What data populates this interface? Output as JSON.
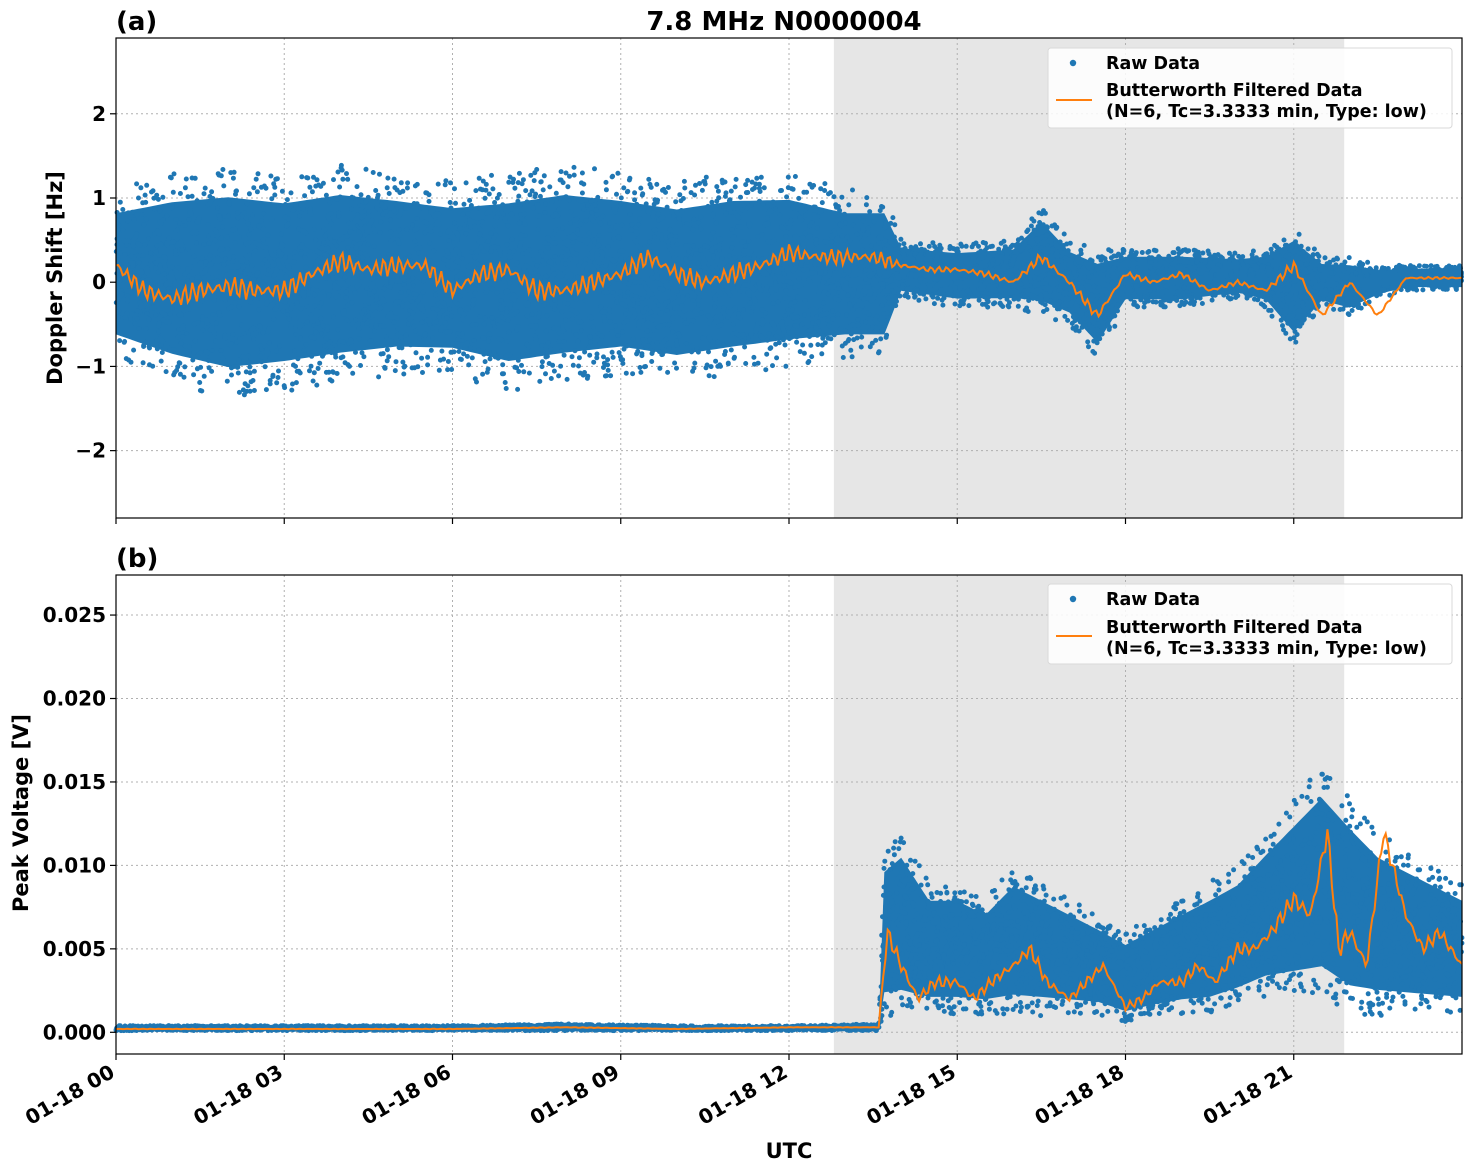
{
  "figure": {
    "title": "7.8 MHz N0000004",
    "xlabel": "UTC",
    "x_tick_labels": [
      "01-18 00",
      "01-18 03",
      "01-18 06",
      "01-18 09",
      "01-18 12",
      "01-18 15",
      "01-18 18",
      "01-18 21"
    ],
    "legend": {
      "raw_label": "Raw Data",
      "filtered_label_line1": "Butterworth Filtered Data",
      "filtered_label_line2": "(N=6, Tc=3.3333 min, Type: low)"
    },
    "colors": {
      "raw": "#1f77b4",
      "filtered": "#ff7f0e",
      "shade": "#e6e6e6"
    }
  },
  "chart_data": [
    {
      "type": "scatter",
      "panel_label": "(a)",
      "ylabel": "Doppler Shift [Hz]",
      "xlim_hours": [
        0,
        24
      ],
      "ylim": [
        -2.8,
        2.9
      ],
      "y_ticks": [
        2,
        1,
        0,
        -1,
        -2
      ],
      "y_tick_labels": [
        "2",
        "1",
        "0",
        "−1",
        "−2"
      ],
      "shaded_interval_hours": [
        12.8,
        21.9
      ],
      "grid": true,
      "legend_position": "top-right",
      "raw_envelope": {
        "x": [
          0,
          1,
          2,
          3,
          4,
          5,
          6,
          7,
          8,
          9,
          10,
          11,
          12,
          13,
          13.7,
          14,
          15,
          16,
          16.5,
          17,
          17.5,
          18,
          19,
          20,
          20.5,
          21,
          21.5,
          22,
          22.5,
          23,
          24
        ],
        "upper": [
          1.1,
          1.3,
          1.4,
          1.3,
          1.4,
          1.3,
          1.2,
          1.3,
          1.4,
          1.3,
          1.2,
          1.3,
          1.3,
          1.1,
          1.1,
          0.5,
          0.45,
          0.5,
          0.9,
          0.5,
          0.4,
          0.4,
          0.4,
          0.35,
          0.4,
          0.7,
          0.3,
          0.3,
          0.2,
          0.2,
          0.2
        ],
        "lower": [
          -0.9,
          -1.2,
          -1.4,
          -1.3,
          -1.2,
          -1.1,
          -1.1,
          -1.3,
          -1.2,
          -1.1,
          -1.2,
          -1.1,
          -1.0,
          -0.9,
          -0.9,
          -0.2,
          -0.3,
          -0.3,
          -0.4,
          -0.5,
          -0.9,
          -0.3,
          -0.3,
          -0.2,
          -0.3,
          -0.8,
          -0.3,
          -0.4,
          -0.2,
          -0.1,
          -0.1
        ]
      },
      "filtered": {
        "x": [
          0,
          0.5,
          1,
          1.5,
          2,
          2.5,
          3,
          3.5,
          4,
          4.5,
          5,
          5.5,
          6,
          6.5,
          7,
          7.5,
          8,
          8.5,
          9,
          9.5,
          10,
          10.5,
          11,
          11.5,
          12,
          12.5,
          13,
          13.5,
          14,
          14.5,
          15,
          15.5,
          16,
          16.5,
          17,
          17.5,
          18,
          18.5,
          19,
          19.5,
          20,
          20.5,
          21,
          21.5,
          22,
          22.5,
          23,
          23.5,
          24
        ],
        "y": [
          0.2,
          -0.1,
          -0.2,
          -0.1,
          -0.05,
          -0.1,
          -0.1,
          0.1,
          0.25,
          0.15,
          0.2,
          0.2,
          -0.1,
          0.1,
          0.15,
          -0.1,
          -0.1,
          0.0,
          0.1,
          0.3,
          0.1,
          0.0,
          0.1,
          0.2,
          0.35,
          0.3,
          0.3,
          0.3,
          0.2,
          0.15,
          0.15,
          0.1,
          0.0,
          0.3,
          0.0,
          -0.4,
          0.1,
          0.0,
          0.1,
          -0.1,
          0.0,
          -0.1,
          0.2,
          -0.4,
          0.0,
          -0.4,
          0.05,
          0.05,
          0.05
        ]
      }
    },
    {
      "type": "scatter",
      "panel_label": "(b)",
      "ylabel": "Peak Voltage [V]",
      "xlim_hours": [
        0,
        24
      ],
      "ylim": [
        -0.0013,
        0.0274
      ],
      "y_ticks": [
        0.025,
        0.02,
        0.015,
        0.01,
        0.005,
        0.0
      ],
      "y_tick_labels": [
        "0.025",
        "0.020",
        "0.015",
        "0.010",
        "0.005",
        "0.000"
      ],
      "shaded_interval_hours": [
        12.8,
        21.9
      ],
      "grid": true,
      "legend_position": "top-right",
      "raw_envelope": {
        "x": [
          0,
          2,
          4,
          6,
          8,
          10,
          12,
          13.6,
          13.7,
          14,
          14.5,
          15,
          15.5,
          16,
          16.5,
          17,
          17.5,
          18,
          18.5,
          19,
          19.5,
          20,
          20.5,
          21,
          21.5,
          22,
          22.5,
          23,
          23.5,
          24
        ],
        "upper": [
          0.0004,
          0.0004,
          0.0004,
          0.0004,
          0.0005,
          0.0004,
          0.0004,
          0.0005,
          0.011,
          0.012,
          0.009,
          0.009,
          0.008,
          0.01,
          0.009,
          0.008,
          0.007,
          0.006,
          0.007,
          0.008,
          0.009,
          0.01,
          0.012,
          0.014,
          0.016,
          0.014,
          0.012,
          0.011,
          0.01,
          0.009
        ],
        "lower": [
          0.0001,
          0.0001,
          0.0001,
          0.0001,
          0.0001,
          0.0001,
          0.0001,
          0.0001,
          0.001,
          0.001,
          0.001,
          0.001,
          0.001,
          0.001,
          0.001,
          0.001,
          0.001,
          0.0005,
          0.0008,
          0.001,
          0.001,
          0.0015,
          0.002,
          0.002,
          0.002,
          0.001,
          0.001,
          0.001,
          0.001,
          0.001
        ]
      },
      "filtered": {
        "x": [
          0,
          2,
          4,
          6,
          8,
          10,
          12,
          13.6,
          13.75,
          14,
          14.3,
          14.6,
          15,
          15.3,
          15.6,
          16,
          16.3,
          16.6,
          17,
          17.3,
          17.6,
          18,
          18.3,
          18.6,
          19,
          19.3,
          19.6,
          20,
          20.3,
          20.6,
          21,
          21.3,
          21.6,
          21.8,
          22,
          22.3,
          22.6,
          23,
          23.3,
          23.6,
          24
        ],
        "y": [
          0.0002,
          0.0002,
          0.0002,
          0.0002,
          0.0003,
          0.0002,
          0.0003,
          0.0003,
          0.006,
          0.004,
          0.002,
          0.003,
          0.003,
          0.002,
          0.003,
          0.004,
          0.005,
          0.003,
          0.002,
          0.003,
          0.004,
          0.0015,
          0.002,
          0.003,
          0.003,
          0.004,
          0.003,
          0.005,
          0.005,
          0.006,
          0.008,
          0.007,
          0.012,
          0.005,
          0.006,
          0.004,
          0.012,
          0.007,
          0.005,
          0.006,
          0.004
        ]
      }
    }
  ]
}
